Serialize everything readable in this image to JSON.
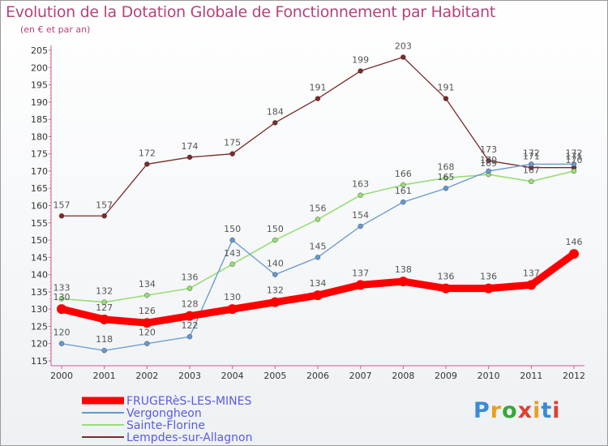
{
  "title": "Evolution de la Dotation Globale de Fonctionnement par Habitant",
  "subtitle": "(en € et par an)",
  "logo": {
    "letters": [
      "P",
      "r",
      "o",
      "x",
      "i",
      "t",
      "i"
    ],
    "colors": [
      "#3a8ad8",
      "#e8a020",
      "#38a838",
      "#e04030",
      "#e8a020",
      "#3a8ad8",
      "#e04030"
    ]
  },
  "chart_data": {
    "type": "line",
    "x": [
      2000,
      2001,
      2002,
      2003,
      2004,
      2005,
      2006,
      2007,
      2008,
      2009,
      2010,
      2011,
      2012
    ],
    "ylim": [
      115,
      205
    ],
    "yticks": [
      115,
      120,
      125,
      130,
      135,
      140,
      145,
      150,
      155,
      160,
      165,
      170,
      175,
      180,
      185,
      190,
      195,
      200,
      205
    ],
    "grid": false,
    "legend": "bottom-left",
    "series": [
      {
        "name": "FRUGERèS-LES-MINES",
        "color": "#ff0000",
        "width": 9,
        "values": [
          130,
          127,
          126,
          128,
          130,
          132,
          134,
          137,
          138,
          136,
          136,
          137,
          146
        ]
      },
      {
        "name": "Vergongheon",
        "color": "#6699cc",
        "width": 1.3,
        "values": [
          120,
          118,
          120,
          122,
          150,
          140,
          145,
          154,
          161,
          165,
          170,
          172,
          172
        ]
      },
      {
        "name": "Sainte-Florine",
        "color": "#99dd77",
        "width": 1.6,
        "values": [
          133,
          132,
          134,
          136,
          143,
          150,
          156,
          163,
          166,
          168,
          169,
          167,
          170
        ]
      },
      {
        "name": "Lempdes-sur-Allagnon",
        "color": "#7a2a2a",
        "width": 1.3,
        "values": [
          157,
          157,
          172,
          174,
          175,
          184,
          191,
          199,
          203,
          191,
          173,
          171,
          171
        ]
      }
    ]
  }
}
